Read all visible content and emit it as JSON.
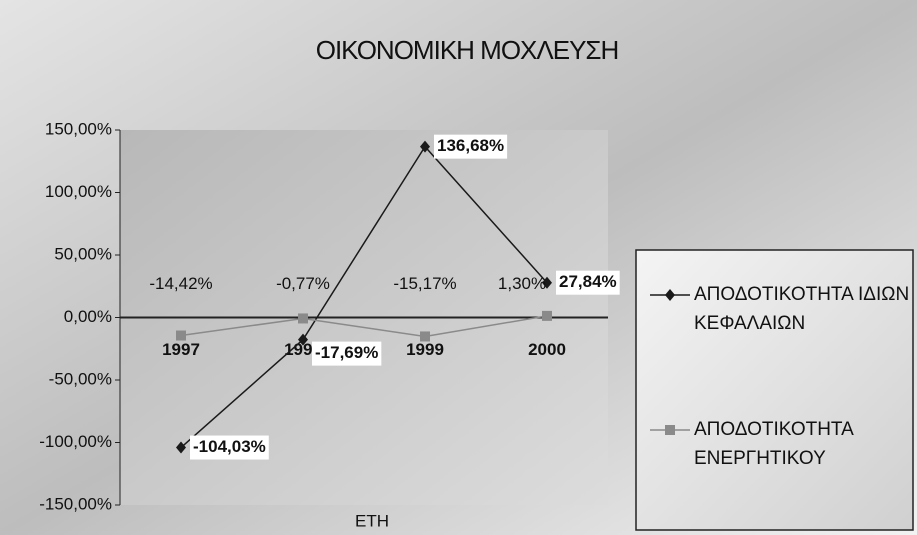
{
  "chart_data": {
    "type": "line",
    "title": "ΟΙΚΟΝΟΜΙΚΗ ΜΟΧΛΕΥΣΗ",
    "x_label": "ΕΤΗ",
    "categories": [
      "1997",
      "1998",
      "1999",
      "2000"
    ],
    "series": [
      {
        "name": "ΑΠΟΔΟΤΙΚΟΤΗΤΑ ΙΔΙΩΝ ΚΕΦΑΛΑΙΩΝ",
        "color": "#1a1a1a",
        "values": [
          -104.03,
          -17.69,
          136.68,
          27.84
        ],
        "value_labels": [
          "-104,03%",
          "-17,69%",
          "136,68%",
          "27,84%"
        ]
      },
      {
        "name": "ΑΠΟΔΟΤΙΚΟΤΗΤΑ ΕΝΕΡΓΗΤΙΚΟΥ",
        "color": "#8a8a8a",
        "values": [
          -14.42,
          -0.77,
          -15.17,
          1.3
        ],
        "value_labels": [
          "-14,42%",
          "-0,77%",
          "-15,17%",
          "1,30%"
        ]
      }
    ],
    "ylim": [
      -150,
      150
    ],
    "yticks": [
      {
        "value": -150,
        "label": "-150,00%"
      },
      {
        "value": -100,
        "label": "-100,00%"
      },
      {
        "value": -50,
        "label": "-50,00%"
      },
      {
        "value": 0,
        "label": "0,00%"
      },
      {
        "value": 50,
        "label": "50,00%"
      },
      {
        "value": 100,
        "label": "100,00%"
      },
      {
        "value": 150,
        "label": "150,00%"
      }
    ],
    "legend": "right"
  }
}
